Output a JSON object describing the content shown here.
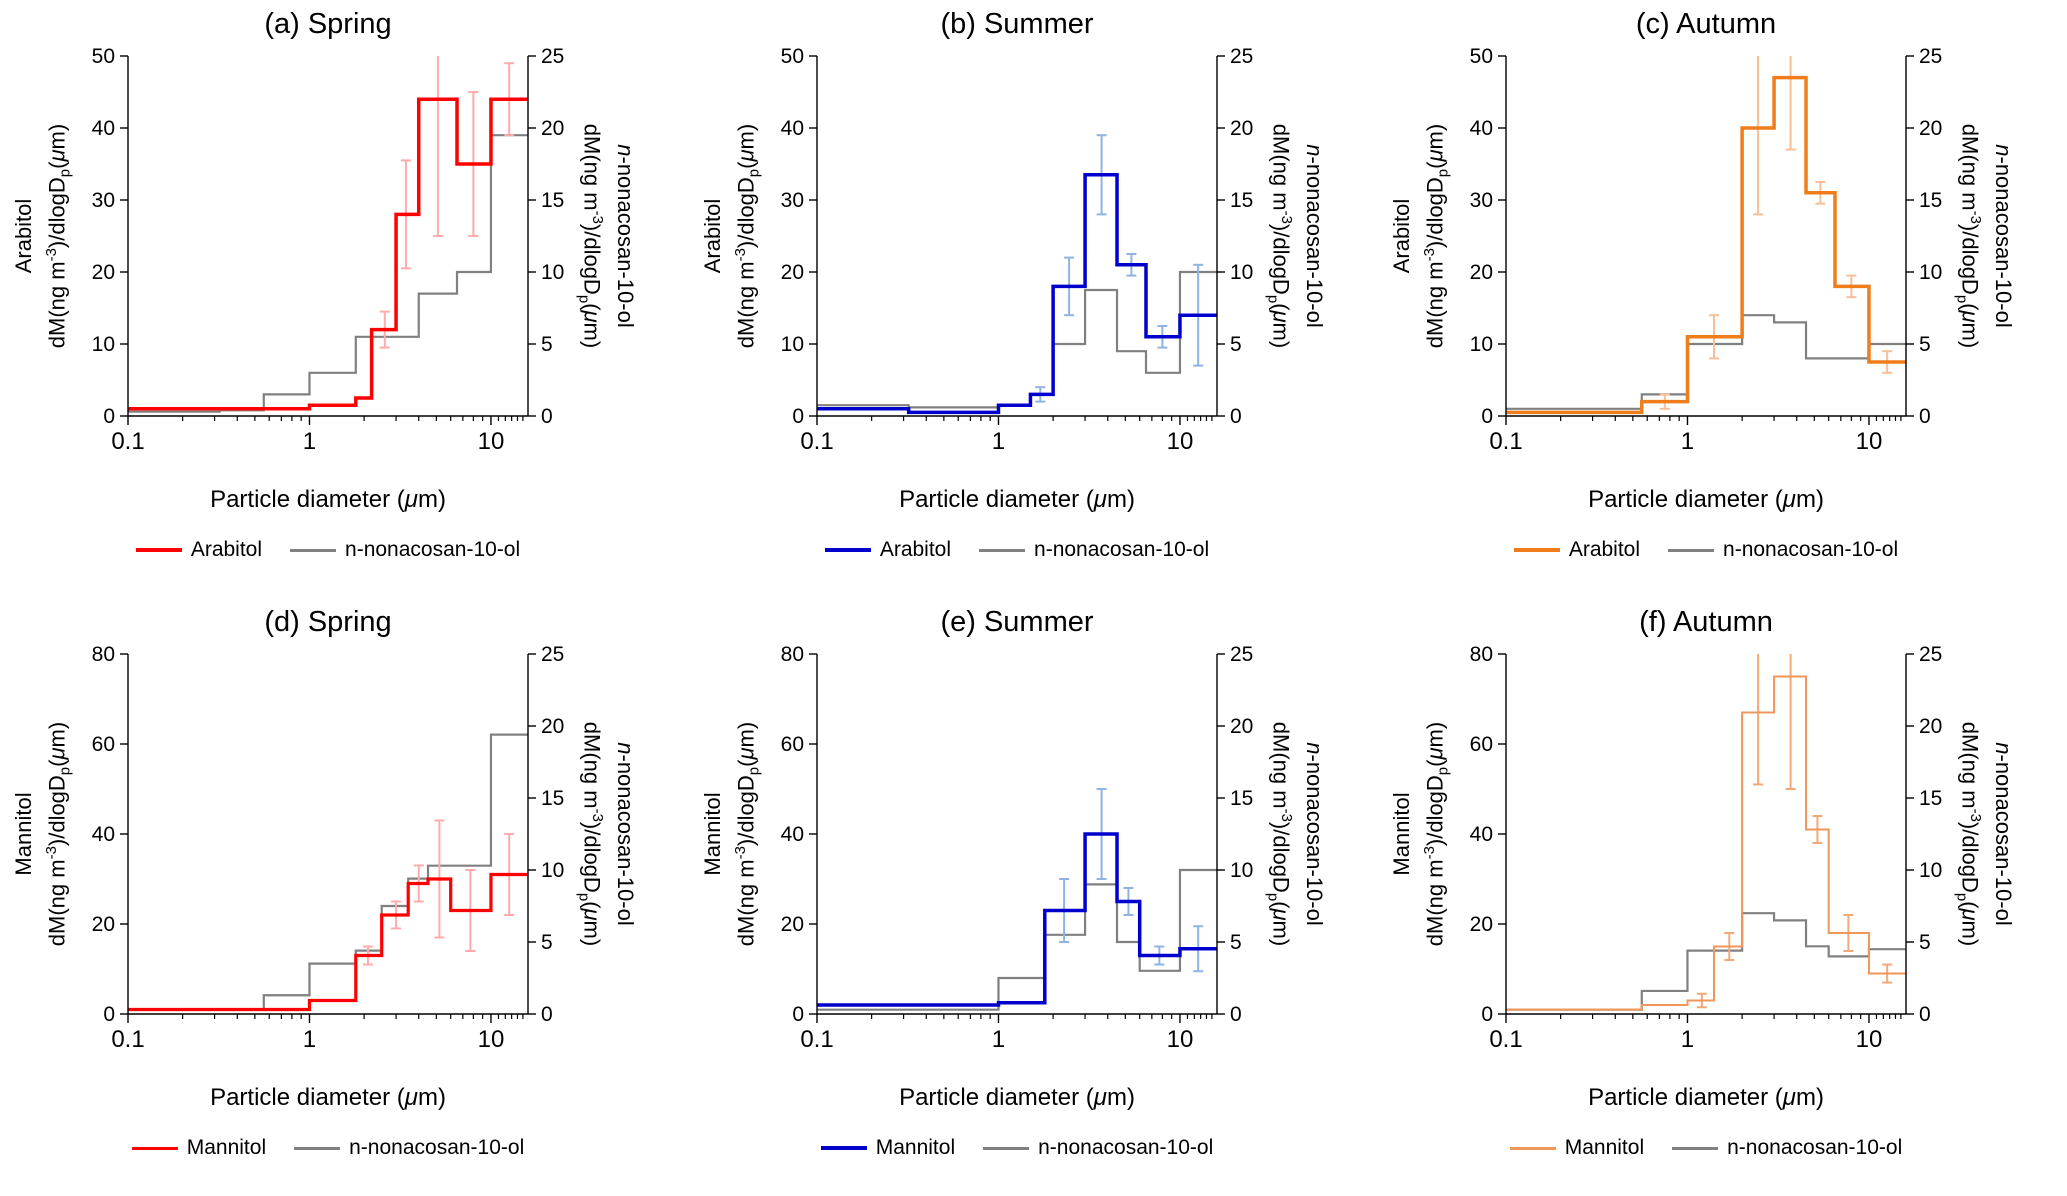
{
  "labels": {
    "x_axis_html": "Particle diameter (<i>μ</i>m)",
    "flux_html": "dM(ng m<sup>-3</sup>)/dlogD<sub>p</sub>(<i>μ</i>m)",
    "right_axis_name_html": "<i>n</i>-nonacosan-10-ol"
  },
  "chart_data": [
    {
      "id": "a",
      "type": "step-histogram",
      "title": "(a) Spring",
      "x_axis": {
        "scale": "log",
        "min": 0.1,
        "max": 16,
        "major_ticks": [
          0.1,
          1,
          10
        ],
        "label": "Particle diameter (μm)"
      },
      "left_axis": {
        "name": "Arabitol",
        "label": "Arabitol dM(ng m⁻³)/dlogDₚ(μm)",
        "max": 50,
        "tick_step": 10
      },
      "right_axis": {
        "name": "n-nonacosan-10-ol",
        "label": "n-nonacosan-10-ol dM(ng m⁻³)/dlogDₚ(μm)",
        "max": 25,
        "tick_step": 5
      },
      "series": [
        {
          "name": "Arabitol",
          "axis": "left",
          "color": "#FF0000",
          "error_color": "#FFABAB",
          "width": 3.5,
          "bin_edges": [
            0.1,
            0.18,
            0.32,
            0.56,
            1.0,
            1.8,
            2.2,
            3.0,
            4.0,
            6.5,
            10,
            16
          ],
          "values": [
            1,
            1,
            1,
            1,
            1.5,
            2.5,
            12,
            28,
            44,
            35,
            44
          ],
          "error_bars": [
            {
              "x": 2.6,
              "y": 12,
              "e": 2.5
            },
            {
              "x": 3.4,
              "y": 28,
              "e": 7.5
            },
            {
              "x": 5.1,
              "y": 44,
              "e": 19
            },
            {
              "x": 8,
              "y": 35,
              "e": 10
            },
            {
              "x": 12.6,
              "y": 44,
              "e": 5
            }
          ]
        },
        {
          "name": "n-nonacosan-10-ol",
          "axis": "right",
          "color": "#808080",
          "width": 2.2,
          "bin_edges": [
            0.1,
            0.18,
            0.32,
            0.56,
            1.0,
            1.8,
            3.0,
            4.0,
            6.5,
            10,
            16
          ],
          "values": [
            0.3,
            0.3,
            0.4,
            1.5,
            3.0,
            5.5,
            5.5,
            8.5,
            10,
            19.5
          ]
        }
      ],
      "legend": [
        "Arabitol",
        "n-nonacosan-10-ol"
      ]
    },
    {
      "id": "b",
      "type": "step-histogram",
      "title": "(b) Summer",
      "x_axis": {
        "scale": "log",
        "min": 0.1,
        "max": 16,
        "major_ticks": [
          0.1,
          1,
          10
        ],
        "label": "Particle diameter (μm)"
      },
      "left_axis": {
        "name": "Arabitol",
        "label": "Arabitol dM(ng m⁻³)/dlogDₚ(μm)",
        "max": 50,
        "tick_step": 10
      },
      "right_axis": {
        "name": "n-nonacosan-10-ol",
        "label": "n-nonacosan-10-ol dM(ng m⁻³)/dlogDₚ(μm)",
        "max": 25,
        "tick_step": 5
      },
      "series": [
        {
          "name": "Arabitol",
          "axis": "left",
          "color": "#0000CC",
          "error_color": "#8FB3E2",
          "width": 3.5,
          "bin_edges": [
            0.1,
            0.18,
            0.32,
            1.0,
            1.5,
            2.0,
            3.0,
            4.5,
            6.5,
            10,
            16
          ],
          "values": [
            1,
            1,
            0.5,
            1.5,
            3,
            18,
            33.5,
            21,
            11,
            14
          ],
          "error_bars": [
            {
              "x": 1.7,
              "y": 3,
              "e": 1
            },
            {
              "x": 2.45,
              "y": 18,
              "e": 4
            },
            {
              "x": 3.7,
              "y": 33.5,
              "e": 5.5
            },
            {
              "x": 5.4,
              "y": 21,
              "e": 1.5
            },
            {
              "x": 8,
              "y": 11,
              "e": 1.5
            },
            {
              "x": 12.6,
              "y": 14,
              "e": 7
            }
          ]
        },
        {
          "name": "n-nonacosan-10-ol",
          "axis": "right",
          "color": "#808080",
          "width": 2.2,
          "bin_edges": [
            0.1,
            0.18,
            0.32,
            1.0,
            1.5,
            2.0,
            3.0,
            4.5,
            6.5,
            10,
            16
          ],
          "values": [
            0.75,
            0.75,
            0.6,
            0.75,
            1.5,
            5,
            8.75,
            4.5,
            3,
            10
          ]
        }
      ],
      "legend": [
        "Arabitol",
        "n-nonacosan-10-ol"
      ]
    },
    {
      "id": "c",
      "type": "step-histogram",
      "title": "(c) Autumn",
      "x_axis": {
        "scale": "log",
        "min": 0.1,
        "max": 16,
        "major_ticks": [
          0.1,
          1,
          10
        ],
        "label": "Particle diameter (μm)"
      },
      "left_axis": {
        "name": "Arabitol",
        "label": "Arabitol dM(ng m⁻³)/dlogDₚ(μm)",
        "max": 50,
        "tick_step": 10
      },
      "right_axis": {
        "name": "n-nonacosan-10-ol",
        "label": "n-nonacosan-10-ol dM(ng m⁻³)/dlogDₚ(μm)",
        "max": 25,
        "tick_step": 5
      },
      "series": [
        {
          "name": "Arabitol",
          "axis": "left",
          "color": "#F07D1C",
          "error_color": "#F8BE95",
          "width": 3.5,
          "bin_edges": [
            0.1,
            0.18,
            0.32,
            0.56,
            1.0,
            2.0,
            3.0,
            4.5,
            6.5,
            10,
            16
          ],
          "values": [
            0.5,
            0.5,
            0.5,
            2,
            11,
            40,
            47,
            31,
            18,
            7.5
          ],
          "error_bars": [
            {
              "x": 0.75,
              "y": 2,
              "e": 1
            },
            {
              "x": 1.4,
              "y": 11,
              "e": 3
            },
            {
              "x": 2.45,
              "y": 40,
              "e": 12
            },
            {
              "x": 3.7,
              "y": 47,
              "e": 10
            },
            {
              "x": 5.4,
              "y": 31,
              "e": 1.5
            },
            {
              "x": 8,
              "y": 18,
              "e": 1.5
            },
            {
              "x": 12.6,
              "y": 7.5,
              "e": 1.5
            }
          ]
        },
        {
          "name": "n-nonacosan-10-ol",
          "axis": "right",
          "color": "#808080",
          "width": 2.2,
          "bin_edges": [
            0.1,
            0.18,
            0.32,
            0.56,
            1.0,
            2.0,
            3.0,
            4.5,
            6.5,
            10,
            16
          ],
          "values": [
            0.5,
            0.5,
            0.5,
            1.5,
            5,
            7,
            6.5,
            4,
            4,
            5
          ]
        }
      ],
      "legend": [
        "Arabitol",
        "n-nonacosan-10-ol"
      ]
    },
    {
      "id": "d",
      "type": "step-histogram",
      "title": "(d) Spring",
      "x_axis": {
        "scale": "log",
        "min": 0.1,
        "max": 16,
        "major_ticks": [
          0.1,
          1,
          10
        ],
        "label": "Particle diameter (μm)"
      },
      "left_axis": {
        "name": "Mannitol",
        "label": "Mannitol dM(ng m⁻³)/dlogDₚ(μm)",
        "max": 80,
        "tick_step": 20
      },
      "right_axis": {
        "name": "n-nonacosan-10-ol",
        "label": "n-nonacosan-10-ol dM(ng m⁻³)/dlogDₚ(μm)",
        "max": 25,
        "tick_step": 5
      },
      "series": [
        {
          "name": "Mannitol",
          "axis": "left",
          "color": "#FF0000",
          "error_color": "#FFABAB",
          "width": 3.2,
          "bin_edges": [
            0.1,
            0.18,
            0.32,
            0.56,
            1.0,
            1.8,
            2.5,
            3.5,
            4.5,
            6.0,
            10,
            16
          ],
          "values": [
            1,
            1,
            1,
            1,
            3,
            13,
            22,
            29,
            30,
            23,
            31
          ],
          "error_bars": [
            {
              "x": 2.1,
              "y": 13,
              "e": 2
            },
            {
              "x": 3,
              "y": 22,
              "e": 3
            },
            {
              "x": 4,
              "y": 29,
              "e": 4
            },
            {
              "x": 5.2,
              "y": 30,
              "e": 13
            },
            {
              "x": 7.7,
              "y": 23,
              "e": 9
            },
            {
              "x": 12.6,
              "y": 31,
              "e": 9
            }
          ]
        },
        {
          "name": "n-nonacosan-10-ol",
          "axis": "right",
          "color": "#808080",
          "width": 2.2,
          "bin_edges": [
            0.1,
            0.18,
            0.32,
            0.56,
            1.0,
            1.8,
            2.5,
            3.5,
            4.5,
            6.0,
            10,
            16
          ],
          "values": [
            0.3,
            0.3,
            0.3,
            1.3,
            3.5,
            4.4,
            7.5,
            9.4,
            10.3,
            10.3,
            19.4
          ]
        }
      ],
      "legend": [
        "Mannitol",
        "n-nonacosan-10-ol"
      ]
    },
    {
      "id": "e",
      "type": "step-histogram",
      "title": "(e) Summer",
      "x_axis": {
        "scale": "log",
        "min": 0.1,
        "max": 16,
        "major_ticks": [
          0.1,
          1,
          10
        ],
        "label": "Particle diameter (μm)"
      },
      "left_axis": {
        "name": "Mannitol",
        "label": "Mannitol dM(ng m⁻³)/dlogDₚ(μm)",
        "max": 80,
        "tick_step": 20
      },
      "right_axis": {
        "name": "n-nonacosan-10-ol",
        "label": "n-nonacosan-10-ol dM(ng m⁻³)/dlogDₚ(μm)",
        "max": 25,
        "tick_step": 5
      },
      "series": [
        {
          "name": "Mannitol",
          "axis": "left",
          "color": "#0000CC",
          "error_color": "#8FB3E2",
          "width": 3.5,
          "bin_edges": [
            0.1,
            0.18,
            0.32,
            0.56,
            1.0,
            1.8,
            3.0,
            4.5,
            6.0,
            10,
            16
          ],
          "values": [
            2,
            2,
            2,
            2,
            2.5,
            23,
            40,
            25,
            13,
            14.5
          ],
          "error_bars": [
            {
              "x": 2.3,
              "y": 23,
              "e": 7
            },
            {
              "x": 3.7,
              "y": 40,
              "e": 10
            },
            {
              "x": 5.2,
              "y": 25,
              "e": 3
            },
            {
              "x": 7.7,
              "y": 13,
              "e": 2
            },
            {
              "x": 12.6,
              "y": 14.5,
              "e": 5
            }
          ]
        },
        {
          "name": "n-nonacosan-10-ol",
          "axis": "right",
          "color": "#808080",
          "width": 2.2,
          "bin_edges": [
            0.1,
            0.18,
            0.32,
            0.56,
            1.0,
            1.8,
            3.0,
            4.5,
            6.0,
            10,
            16
          ],
          "values": [
            0.3,
            0.3,
            0.3,
            0.3,
            2.5,
            5.5,
            9,
            5,
            3,
            10
          ]
        }
      ],
      "legend": [
        "Mannitol",
        "n-nonacosan-10-ol"
      ]
    },
    {
      "id": "f",
      "type": "step-histogram",
      "title": "(f) Autumn",
      "x_axis": {
        "scale": "log",
        "min": 0.1,
        "max": 16,
        "major_ticks": [
          0.1,
          1,
          10
        ],
        "label": "Particle diameter (μm)"
      },
      "left_axis": {
        "name": "Mannitol",
        "label": "Mannitol dM(ng m⁻³)/dlogDₚ(μm)",
        "max": 80,
        "tick_step": 20
      },
      "right_axis": {
        "name": "n-nonacosan-10-ol",
        "label": "n-nonacosan-10-ol dM(ng m⁻³)/dlogDₚ(μm)",
        "max": 25,
        "tick_step": 5
      },
      "series": [
        {
          "name": "Mannitol",
          "axis": "left",
          "color": "#F1965A",
          "error_color": "#F3A977",
          "width": 2,
          "bin_edges": [
            0.1,
            0.18,
            0.32,
            0.56,
            1.0,
            1.4,
            2.0,
            3.0,
            4.5,
            6.0,
            10,
            16
          ],
          "values": [
            1,
            1,
            1,
            2,
            3,
            15,
            67,
            75,
            41,
            18,
            9
          ],
          "error_bars": [
            {
              "x": 1.2,
              "y": 3,
              "e": 1.5
            },
            {
              "x": 1.7,
              "y": 15,
              "e": 3
            },
            {
              "x": 2.45,
              "y": 67,
              "e": 16
            },
            {
              "x": 3.7,
              "y": 75,
              "e": 25
            },
            {
              "x": 5.2,
              "y": 41,
              "e": 3
            },
            {
              "x": 7.7,
              "y": 18,
              "e": 4
            },
            {
              "x": 12.6,
              "y": 9,
              "e": 2
            }
          ]
        },
        {
          "name": "n-nonacosan-10-ol",
          "axis": "right",
          "color": "#808080",
          "width": 2.2,
          "bin_edges": [
            0.1,
            0.18,
            0.32,
            0.56,
            1.0,
            2.0,
            3.0,
            4.5,
            6.0,
            10,
            16
          ],
          "values": [
            0.3,
            0.3,
            0.3,
            1.6,
            4.4,
            7,
            6.5,
            4.7,
            4,
            4.5
          ]
        }
      ],
      "legend": [
        "Mannitol",
        "n-nonacosan-10-ol"
      ]
    }
  ]
}
